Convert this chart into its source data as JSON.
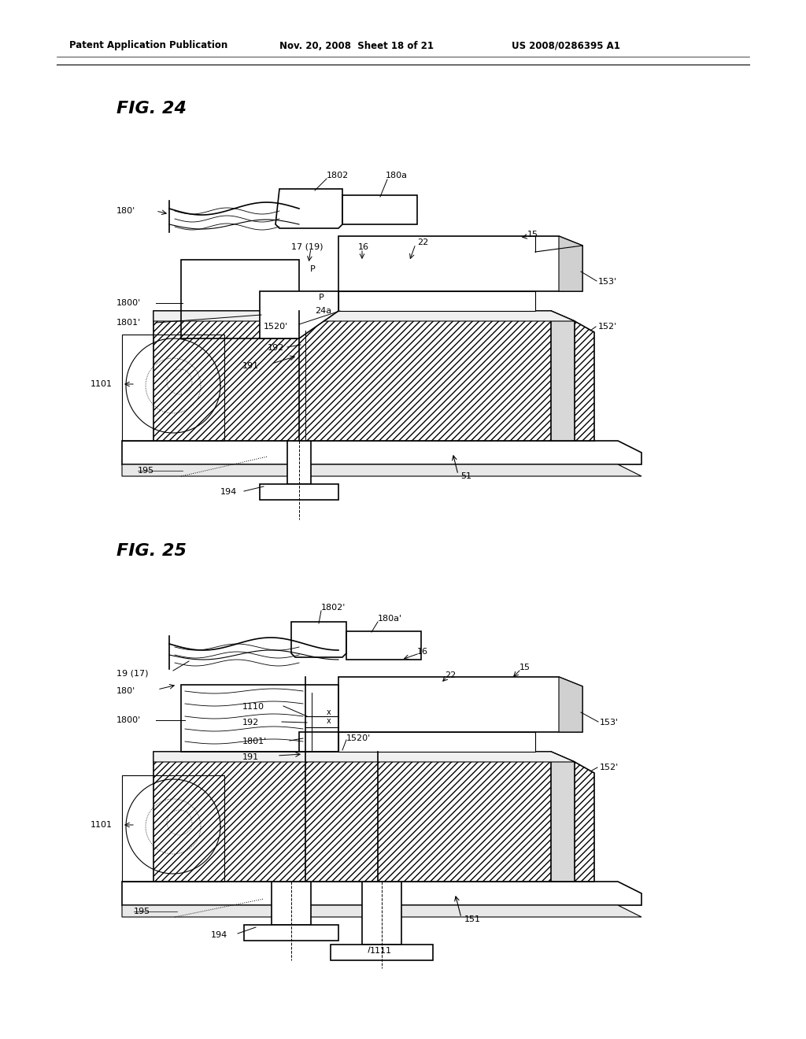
{
  "background_color": "#ffffff",
  "header_text": "Patent Application Publication",
  "header_date": "Nov. 20, 2008  Sheet 18 of 21",
  "header_patent": "US 2008/0286395 A1",
  "fig24_title": "FIG. 24",
  "fig25_title": "FIG. 25",
  "line_color": "#000000",
  "label_fontsize": 8,
  "title_fontsize": 16,
  "header_fontsize": 8.5
}
